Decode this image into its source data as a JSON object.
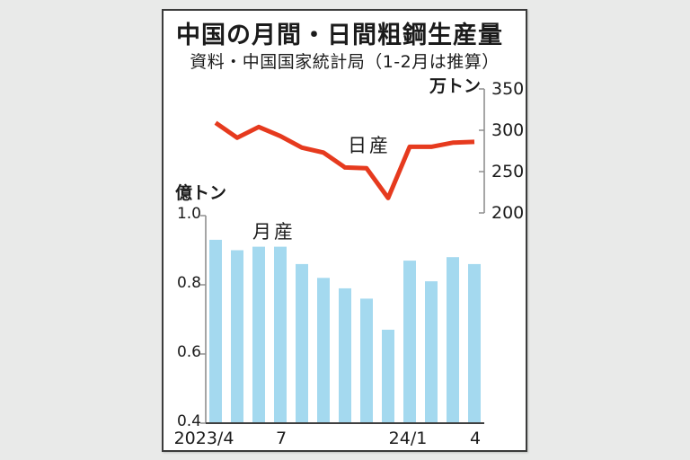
{
  "window": {
    "background_color": "#e9eae9",
    "panel_border_color": "#3b3b3b"
  },
  "chart": {
    "title": "中国の月間・日間粗鋼生産量",
    "subtitle": "資料・中国国家統計局（1-2月は推算）"
  },
  "chart_data": [
    {
      "type": "line",
      "name": "日産",
      "unit": "万トン",
      "axis_side": "right",
      "ylim": [
        200,
        350
      ],
      "axis_ticks": [
        "350",
        "300",
        "250",
        "200"
      ],
      "categories": [
        "2023/4",
        "5",
        "6",
        "7",
        "8",
        "9",
        "10",
        "11",
        "12",
        "24/1",
        "2",
        "3",
        "4"
      ],
      "values": [
        309,
        291,
        304,
        293,
        279,
        273,
        255,
        254,
        218,
        280,
        280,
        285,
        286
      ],
      "color": "#e63a1e",
      "legend_position": "inline-label",
      "grid": false
    },
    {
      "type": "bar",
      "name": "月産",
      "unit": "億トン",
      "axis_side": "left",
      "ylim": [
        0.4,
        1.0
      ],
      "axis_ticks": [
        "1.0",
        "0.8",
        "0.6",
        "0.4"
      ],
      "categories": [
        "2023/4",
        "5",
        "6",
        "7",
        "8",
        "9",
        "10",
        "11",
        "12",
        "24/1",
        "2",
        "3",
        "4"
      ],
      "values": [
        0.93,
        0.9,
        0.91,
        0.91,
        0.86,
        0.82,
        0.79,
        0.76,
        0.67,
        0.87,
        0.81,
        0.88,
        0.86
      ],
      "x_axis_labels": [
        "2023/4",
        "7",
        "24/1",
        "4"
      ],
      "color": "#a4d9ef",
      "legend_position": "inline-label",
      "grid": false
    }
  ]
}
